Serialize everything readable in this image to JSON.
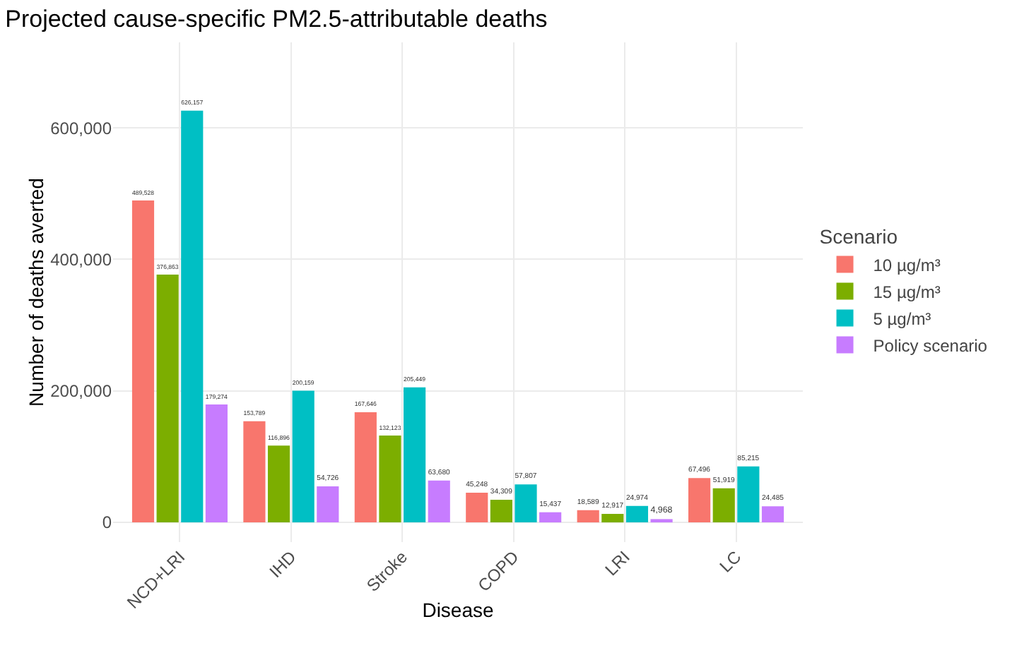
{
  "chart_data": {
    "type": "bar",
    "title": "Projected cause-specific PM2.5-attributable deaths",
    "xlabel": "Disease",
    "ylabel": "Number of deaths averted",
    "legend_title": "Scenario",
    "categories": [
      "NCD+LRI",
      "IHD",
      "Stroke",
      "COPD",
      "LRI",
      "LC"
    ],
    "series": [
      {
        "name": "10 µg/m³",
        "color": "#f8766d",
        "values": [
          489528,
          153789,
          167646,
          45248,
          18589,
          67496
        ],
        "value_labels": [
          "489,528",
          "153,789",
          "167,646",
          "45,248",
          "18,589",
          "67,496"
        ]
      },
      {
        "name": "15 µg/m³",
        "color": "#7cae00",
        "values": [
          376863,
          116896,
          132123,
          34309,
          12917,
          51919
        ],
        "value_labels": [
          "376,863",
          "116,896",
          "132,123",
          "34,309",
          "12,917",
          "51,919"
        ]
      },
      {
        "name": "5 µg/m³",
        "color": "#00bfc4",
        "values": [
          626157,
          200159,
          205449,
          57807,
          24974,
          85215
        ],
        "value_labels": [
          "626,157",
          "200,159",
          "205,449",
          "57,807",
          "24,974",
          "85,215"
        ]
      },
      {
        "name": "Policy scenario",
        "color": "#c77cff",
        "values": [
          179274,
          54726,
          63680,
          15437,
          4968,
          24485
        ],
        "value_labels": [
          "179,274",
          "54,726",
          "63,680",
          "15,437",
          "4,968",
          "24,485"
        ]
      }
    ],
    "ylim": [
      -30000,
      730000
    ],
    "yticks": [
      {
        "value": 0,
        "label": "0"
      },
      {
        "value": 200000,
        "label": "200,000"
      },
      {
        "value": 400000,
        "label": "400,000"
      },
      {
        "value": 600000,
        "label": "600,000"
      }
    ],
    "grid": true,
    "legend": "right"
  }
}
